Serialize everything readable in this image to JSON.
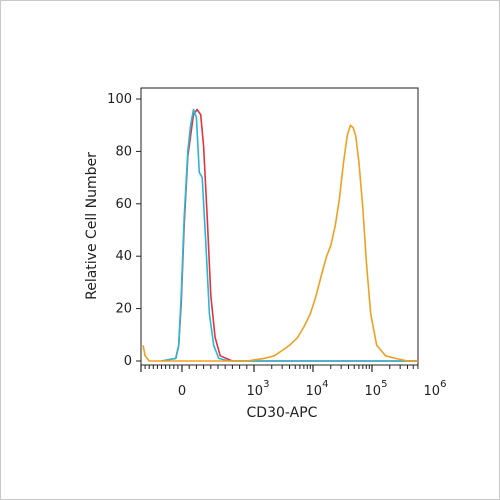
{
  "chart_data": {
    "type": "line",
    "title": "",
    "xlabel": "CD30-APC",
    "ylabel": "Relative Cell Number",
    "x_scale": "biexponential",
    "xlim": [
      -1000,
      1000000
    ],
    "ylim": [
      0,
      100
    ],
    "yticks": [
      0,
      20,
      40,
      60,
      80,
      100
    ],
    "ytick_labels": [
      "0",
      "20",
      "40",
      "60",
      "80",
      "100"
    ],
    "xtick_labels": [
      {
        "value": 0,
        "base": "0",
        "exp": ""
      },
      {
        "value": 1000,
        "base": "10",
        "exp": "3"
      },
      {
        "value": 10000,
        "base": "10",
        "exp": "4"
      },
      {
        "value": 100000,
        "base": "10",
        "exp": "5"
      },
      {
        "value": 1000000,
        "base": "10",
        "exp": "6"
      }
    ],
    "grid": false,
    "legend": "none",
    "series": [
      {
        "color": "#e0353d",
        "x": [
          -500,
          -150,
          -80,
          -20,
          30,
          80,
          120,
          160,
          210,
          260,
          300,
          350,
          400,
          460,
          530,
          700,
          2000,
          100000,
          1000000
        ],
        "y": [
          0,
          1,
          6,
          22,
          52,
          78,
          86,
          94,
          96,
          94,
          82,
          55,
          25,
          9,
          2,
          0,
          0,
          0,
          0
        ]
      },
      {
        "color": "#29b6d8",
        "x": [
          -500,
          -150,
          -80,
          -20,
          30,
          80,
          120,
          160,
          200,
          240,
          280,
          330,
          380,
          440,
          510,
          650,
          2000,
          100000,
          1000000
        ],
        "y": [
          0,
          1,
          6,
          25,
          55,
          80,
          90,
          96,
          93,
          72,
          70,
          45,
          18,
          6,
          1,
          0,
          0,
          0,
          0
        ]
      },
      {
        "color": "#f0a020",
        "x": [
          -950,
          -900,
          -800,
          -600,
          0,
          500,
          900,
          1500,
          2200,
          3000,
          4000,
          5500,
          7000,
          9000,
          11000,
          14000,
          17000,
          20000,
          24000,
          28000,
          33000,
          38000,
          43000,
          48000,
          53000,
          60000,
          70000,
          80000,
          95000,
          120000,
          170000,
          250000,
          400000,
          700000,
          1000000
        ],
        "y": [
          6,
          2,
          0,
          0,
          0,
          0,
          0,
          1,
          2,
          4,
          6,
          9,
          13,
          18,
          24,
          33,
          40,
          44,
          52,
          62,
          76,
          86,
          90,
          89,
          86,
          76,
          58,
          38,
          18,
          6,
          2,
          1,
          0,
          0,
          0
        ]
      }
    ]
  }
}
